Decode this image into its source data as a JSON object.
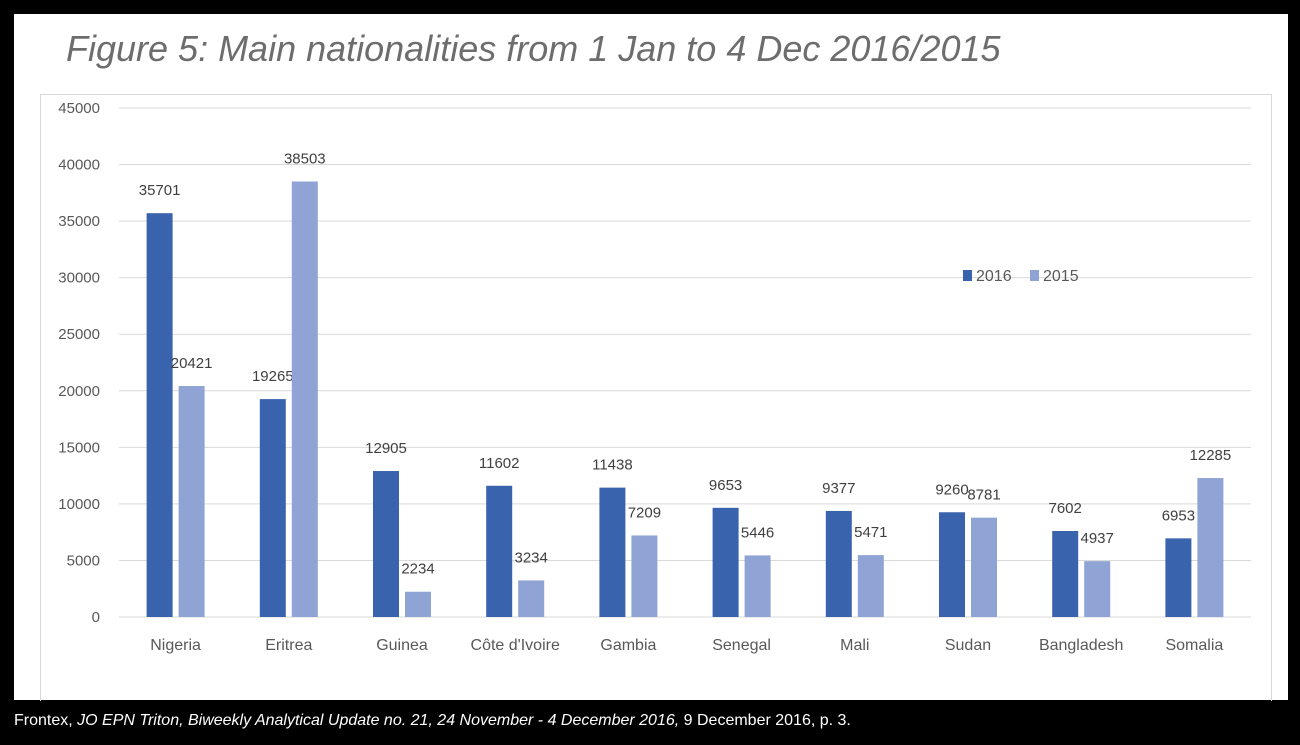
{
  "title": "Figure 5: Main nationalities from 1 Jan to 4 Dec 2016/2015",
  "caption": {
    "source": "Frontex, ",
    "publication": "JO EPN Triton, Biweekly Analytical Update no. 21, 24 November - 4 December 2016,",
    "details": " 9 December 2016, p. 3."
  },
  "chart_data": {
    "type": "bar",
    "categories": [
      "Nigeria",
      "Eritrea",
      "Guinea",
      "Côte d'Ivoire",
      "Gambia",
      "Senegal",
      "Mali",
      "Sudan",
      "Bangladesh",
      "Somalia"
    ],
    "series": [
      {
        "name": "2016",
        "color": "#3a63ad",
        "values": [
          35701,
          19265,
          12905,
          11602,
          11438,
          9653,
          9377,
          9260,
          7602,
          6953
        ]
      },
      {
        "name": "2015",
        "color": "#8fa4d4",
        "values": [
          20421,
          38503,
          2234,
          3234,
          7209,
          5446,
          5471,
          8781,
          4937,
          12285
        ]
      }
    ],
    "ylim": [
      0,
      45000
    ],
    "yticks": [
      0,
      5000,
      10000,
      15000,
      20000,
      25000,
      30000,
      35000,
      40000,
      45000
    ],
    "grid": true,
    "data_labels": true,
    "legend": "right"
  }
}
